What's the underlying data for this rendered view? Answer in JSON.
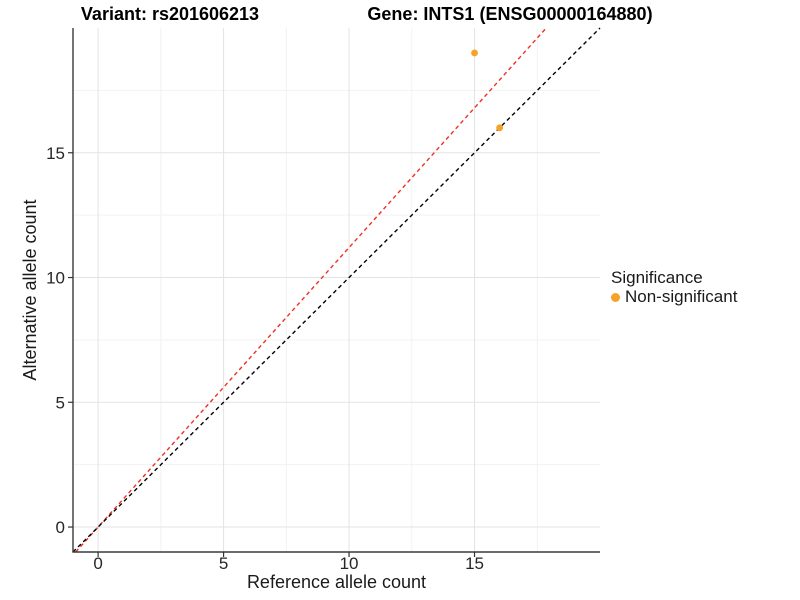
{
  "chart_data": {
    "type": "scatter",
    "title_left": "Variant: rs201606213",
    "title_right": "Gene: INTS1 (ENSG00000164880)",
    "xlabel": "Reference allele count",
    "ylabel": "Alternative allele count",
    "xlim": [
      -1,
      20
    ],
    "ylim": [
      -1,
      20
    ],
    "xticks": [
      0,
      5,
      10,
      15
    ],
    "yticks": [
      0,
      5,
      10,
      15
    ],
    "x_minor_ticks": [
      2.5,
      7.5,
      12.5,
      17.5
    ],
    "y_minor_ticks": [
      2.5,
      7.5,
      12.5,
      17.5
    ],
    "points": [
      {
        "x": 15,
        "y": 19,
        "series": "Non-significant"
      },
      {
        "x": 16,
        "y": 16,
        "series": "Non-significant"
      }
    ],
    "point_color": "#F7A227",
    "point_radius": 3.4,
    "reference_lines": [
      {
        "name": "expected-ratio-line",
        "slope": 1.12,
        "intercept": 0,
        "color": "#EE3023",
        "style": "dashed"
      },
      {
        "name": "identity-line",
        "slope": 1.0,
        "intercept": 0,
        "color": "#000000",
        "style": "dashed"
      }
    ],
    "legend": {
      "title": "Significance",
      "items": [
        {
          "label": "Non-significant",
          "color": "#F7A227"
        }
      ]
    },
    "grid": {
      "major_color": "#e3e3e3",
      "minor_color": "#f2f2f2",
      "background": "#ffffff"
    },
    "axis": {
      "line_color": "#3a3a3a",
      "tick_color": "#333333",
      "tick_label_color": "#262626"
    }
  }
}
